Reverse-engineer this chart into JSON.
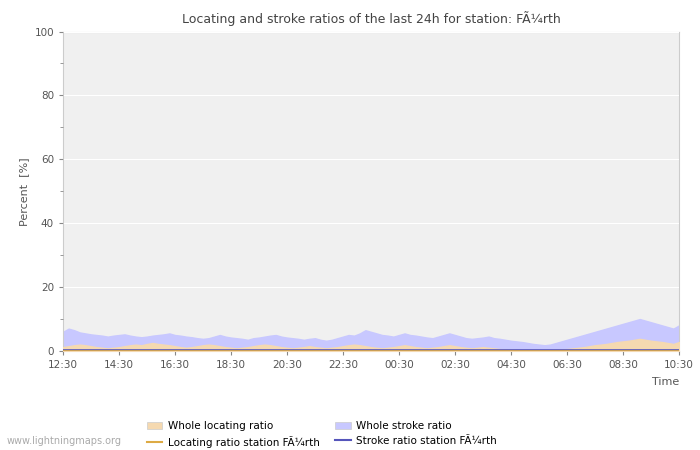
{
  "title": "Locating and stroke ratios of the last 24h for station: FÃ¼rth",
  "ylabel": "Percent  [%]",
  "xlabel": "Time",
  "ylim": [
    0,
    100
  ],
  "yticks_major": [
    0,
    20,
    40,
    60,
    80,
    100
  ],
  "yticks_minor": [
    10,
    30,
    50,
    70,
    90
  ],
  "xtick_labels": [
    "12:30",
    "14:30",
    "16:30",
    "18:30",
    "20:30",
    "22:30",
    "00:30",
    "02:30",
    "04:30",
    "06:30",
    "08:30",
    "10:30"
  ],
  "background_color": "#ffffff",
  "plot_bg_color": "#f0f0f0",
  "grid_color": "#ffffff",
  "whole_stroke_color": "#c8c8ff",
  "whole_locate_color": "#f5d9b0",
  "station_stroke_color": "#5555bb",
  "station_locate_color": "#ddaa44",
  "watermark": "www.lightningmaps.org",
  "legend": {
    "whole_locate": "Whole locating ratio",
    "whole_stroke": "Whole stroke ratio",
    "station_locate": "Locating ratio station FÃ¼rth",
    "station_stroke": "Stroke ratio station FÃ¼rth"
  },
  "whole_stroke_values": [
    6.0,
    7.0,
    6.5,
    5.8,
    5.5,
    5.2,
    5.0,
    4.8,
    4.5,
    4.8,
    5.0,
    5.2,
    4.8,
    4.5,
    4.3,
    4.5,
    4.8,
    5.0,
    5.2,
    5.5,
    5.0,
    4.8,
    4.5,
    4.3,
    4.0,
    3.8,
    4.0,
    4.5,
    5.0,
    4.5,
    4.2,
    4.0,
    3.8,
    3.5,
    4.0,
    4.2,
    4.5,
    4.8,
    5.0,
    4.5,
    4.2,
    4.0,
    3.8,
    3.5,
    3.8,
    4.0,
    3.5,
    3.2,
    3.5,
    4.0,
    4.5,
    5.0,
    4.8,
    5.5,
    6.5,
    6.0,
    5.5,
    5.0,
    4.8,
    4.5,
    5.0,
    5.5,
    5.0,
    4.8,
    4.5,
    4.2,
    4.0,
    4.5,
    5.0,
    5.5,
    5.0,
    4.5,
    4.0,
    3.8,
    4.0,
    4.2,
    4.5,
    4.0,
    3.8,
    3.5,
    3.2,
    3.0,
    2.8,
    2.5,
    2.2,
    2.0,
    1.8,
    2.0,
    2.5,
    3.0,
    3.5,
    4.0,
    4.5,
    5.0,
    5.5,
    6.0,
    6.5,
    7.0,
    7.5,
    8.0,
    8.5,
    9.0,
    9.5,
    10.0,
    9.5,
    9.0,
    8.5,
    8.0,
    7.5,
    7.0,
    8.0
  ],
  "whole_locate_values": [
    1.2,
    1.5,
    1.8,
    2.0,
    1.8,
    1.5,
    1.2,
    1.0,
    0.8,
    1.0,
    1.2,
    1.5,
    1.8,
    2.0,
    1.8,
    2.2,
    2.5,
    2.2,
    2.0,
    1.8,
    1.5,
    1.2,
    1.0,
    1.2,
    1.5,
    1.8,
    2.0,
    1.8,
    1.5,
    1.2,
    1.0,
    0.8,
    1.0,
    1.2,
    1.5,
    1.8,
    2.0,
    1.8,
    1.5,
    1.2,
    1.0,
    0.8,
    1.0,
    1.2,
    1.5,
    1.2,
    1.0,
    0.8,
    1.0,
    1.2,
    1.5,
    1.8,
    2.0,
    1.8,
    1.5,
    1.2,
    1.0,
    0.8,
    1.0,
    1.2,
    1.5,
    1.8,
    1.5,
    1.2,
    1.0,
    0.8,
    1.0,
    1.2,
    1.5,
    1.8,
    1.5,
    1.2,
    1.0,
    0.8,
    1.0,
    1.2,
    1.0,
    0.8,
    0.6,
    0.5,
    0.4,
    0.3,
    0.3,
    0.3,
    0.3,
    0.3,
    0.3,
    0.3,
    0.4,
    0.5,
    0.6,
    0.8,
    1.0,
    1.2,
    1.5,
    1.8,
    2.0,
    2.2,
    2.5,
    2.8,
    3.0,
    3.2,
    3.5,
    3.8,
    3.5,
    3.2,
    3.0,
    2.8,
    2.5,
    2.2,
    2.8
  ],
  "station_stroke_values": [
    0.3,
    0.3,
    0.3,
    0.3,
    0.3,
    0.3,
    0.3,
    0.3,
    0.3,
    0.3,
    0.3,
    0.3,
    0.3,
    0.3,
    0.3,
    0.3,
    0.3,
    0.3,
    0.3,
    0.3,
    0.3,
    0.3,
    0.3,
    0.3,
    0.3,
    0.3,
    0.3,
    0.3,
    0.3,
    0.3,
    0.3,
    0.3,
    0.3,
    0.3,
    0.3,
    0.3,
    0.3,
    0.3,
    0.3,
    0.3,
    0.3,
    0.3,
    0.3,
    0.3,
    0.3,
    0.3,
    0.3,
    0.3,
    0.3,
    0.3,
    0.3,
    0.3,
    0.3,
    0.3,
    0.3,
    0.3,
    0.3,
    0.3,
    0.3,
    0.3,
    0.3,
    0.3,
    0.3,
    0.3,
    0.3,
    0.3,
    0.3,
    0.3,
    0.3,
    0.3,
    0.3,
    0.3,
    0.3,
    0.3,
    0.3,
    0.3,
    0.3,
    0.3,
    0.3,
    0.3,
    0.3,
    0.3,
    0.3,
    0.3,
    0.3,
    0.3,
    0.3,
    0.3,
    0.3,
    0.3,
    0.3,
    0.3,
    0.3,
    0.3,
    0.3,
    0.3,
    0.3,
    0.3,
    0.3,
    0.3,
    0.3,
    0.3,
    0.3,
    0.3,
    0.3,
    0.3,
    0.3,
    0.3,
    0.3,
    0.3,
    0.3
  ],
  "station_locate_values": [
    0.15,
    0.15,
    0.15,
    0.15,
    0.15,
    0.15,
    0.15,
    0.15,
    0.15,
    0.15,
    0.15,
    0.15,
    0.15,
    0.15,
    0.15,
    0.15,
    0.15,
    0.15,
    0.15,
    0.15,
    0.15,
    0.15,
    0.15,
    0.15,
    0.15,
    0.15,
    0.15,
    0.15,
    0.15,
    0.15,
    0.15,
    0.15,
    0.15,
    0.15,
    0.15,
    0.15,
    0.15,
    0.15,
    0.15,
    0.15,
    0.15,
    0.15,
    0.15,
    0.15,
    0.15,
    0.15,
    0.15,
    0.15,
    0.15,
    0.15,
    0.15,
    0.15,
    0.15,
    0.15,
    0.15,
    0.15,
    0.15,
    0.15,
    0.15,
    0.15,
    0.15,
    0.15,
    0.15,
    0.15,
    0.15,
    0.15,
    0.15,
    0.15,
    0.15,
    0.15,
    0.15,
    0.15,
    0.15,
    0.15,
    0.15,
    0.15,
    0.15,
    0.15,
    0.15,
    0.15,
    0.15,
    0.15,
    0.15,
    0.15,
    0.15,
    0.15,
    0.15,
    0.15,
    0.15,
    0.15,
    0.15,
    0.15,
    0.15,
    0.15,
    0.15,
    0.15,
    0.15,
    0.15,
    0.15,
    0.15,
    0.15,
    0.15,
    0.15,
    0.15,
    0.15,
    0.15,
    0.15,
    0.15,
    0.15,
    0.15,
    0.15
  ]
}
